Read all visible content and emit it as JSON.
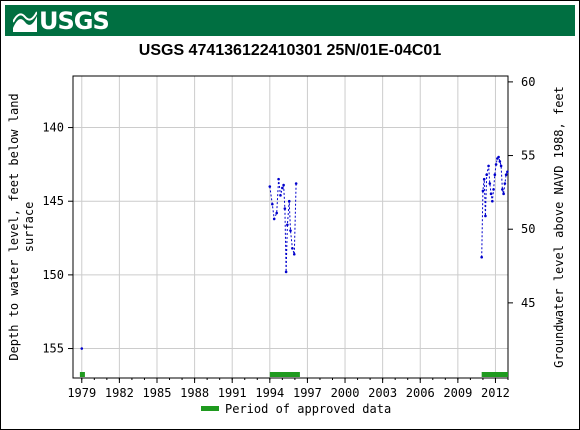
{
  "header": {
    "logo_text": "USGS"
  },
  "chart_data": {
    "type": "scatter",
    "title": "USGS 474136122410301 25N/01E-04C01",
    "ylabel_left": [
      "Depth to water level, feet below land",
      "surface"
    ],
    "ylabel_right": "Groundwater level above NAVD 1988, feet",
    "xlim": [
      1978.3,
      2013.0
    ],
    "ylim_left": [
      157.0,
      136.5
    ],
    "ylim_right": [
      39.9,
      60.4
    ],
    "x_ticks": [
      "1979",
      "1982",
      "1985",
      "1988",
      "1991",
      "1994",
      "1997",
      "2000",
      "2003",
      "2006",
      "2009",
      "2012"
    ],
    "x_tick_values": [
      1979,
      1982,
      1985,
      1988,
      1991,
      1994,
      1997,
      2000,
      2003,
      2006,
      2009,
      2012
    ],
    "y_ticks_left": [
      "140",
      "145",
      "150",
      "155"
    ],
    "y_tick_values_left": [
      140,
      145,
      150,
      155
    ],
    "y_ticks_right": [
      "60",
      "55",
      "50",
      "45"
    ],
    "y_tick_values_right": [
      60,
      55,
      50,
      45
    ],
    "grid": true,
    "series": [
      {
        "name": "",
        "color": "#0000cc",
        "segments": [
          [
            [
              1979.0,
              155.0
            ]
          ],
          [
            [
              1994.0,
              144.0
            ],
            [
              1994.2,
              145.2
            ],
            [
              1994.35,
              146.2
            ],
            [
              1994.55,
              145.8
            ],
            [
              1994.7,
              143.5
            ],
            [
              1994.85,
              144.6
            ],
            [
              1995.0,
              144.1
            ],
            [
              1995.1,
              143.9
            ],
            [
              1995.2,
              145.5
            ],
            [
              1995.3,
              149.8
            ],
            [
              1995.4,
              146.6
            ],
            [
              1995.55,
              145.0
            ],
            [
              1995.65,
              147.0
            ],
            [
              1995.8,
              148.2
            ],
            [
              1995.95,
              148.6
            ],
            [
              1996.1,
              143.8
            ]
          ],
          [
            [
              2010.9,
              148.8
            ],
            [
              2011.0,
              144.3
            ],
            [
              2011.1,
              143.5
            ],
            [
              2011.2,
              146.0
            ],
            [
              2011.3,
              143.2
            ],
            [
              2011.45,
              142.6
            ],
            [
              2011.55,
              143.8
            ],
            [
              2011.65,
              144.5
            ],
            [
              2011.75,
              145.0
            ],
            [
              2011.85,
              144.2
            ],
            [
              2011.95,
              143.2
            ],
            [
              2012.05,
              142.5
            ],
            [
              2012.15,
              142.1
            ],
            [
              2012.25,
              142.0
            ],
            [
              2012.35,
              142.3
            ],
            [
              2012.45,
              142.6
            ],
            [
              2012.55,
              144.2
            ],
            [
              2012.65,
              144.5
            ],
            [
              2012.75,
              143.8
            ],
            [
              2012.85,
              143.2
            ],
            [
              2012.95,
              143.0
            ]
          ]
        ]
      }
    ],
    "approved_periods": [
      [
        1978.85,
        1979.25
      ],
      [
        1994.0,
        1996.4
      ],
      [
        2010.9,
        2013.0
      ]
    ],
    "approved_color": "#1f9a1f",
    "legend": {
      "label": "Period of approved data",
      "placement": "bottom-center"
    }
  }
}
